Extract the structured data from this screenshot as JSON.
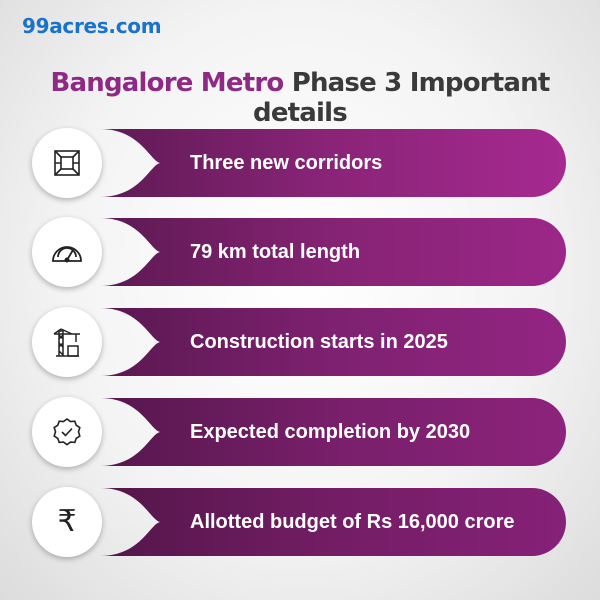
{
  "logo": "99acres.com",
  "title": {
    "highlight": "Bangalore Metro",
    "rest": "Phase 3  Important details"
  },
  "items": [
    {
      "label": "Three new corridors",
      "icon": "map-icon"
    },
    {
      "label": "79 km total length",
      "icon": "speedometer-icon"
    },
    {
      "label": "Construction starts in 2025",
      "icon": "crane-icon"
    },
    {
      "label": "Expected completion by 2030",
      "icon": "check-badge-icon"
    },
    {
      "label": "Allotted budget of Rs 16,000 crore",
      "icon": "rupee-icon",
      "glyph": "₹"
    }
  ],
  "colors": {
    "logo": "#1a73c9",
    "title_highlight": "#8e2a84",
    "title_text": "#3a3a3a",
    "bar_light": "#a3288e",
    "bar_dark": "#5a1850"
  }
}
